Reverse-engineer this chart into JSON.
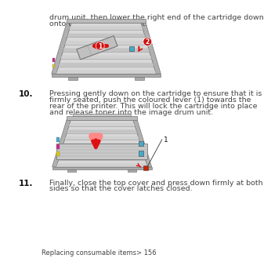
{
  "bg_color": "#ffffff",
  "top_text_line1": "drum unit, then lower the right end of the cartridge down",
  "top_text_line2": "onto the image drum unit.",
  "step10_label": "10.",
  "step10_text_line1": "Pressing gently down on the cartridge to ensure that it is",
  "step10_text_line2": "firmly seated, push the coloured lever (1) towards the",
  "step10_text_line3": "rear of the printer. This will lock the cartridge into place",
  "step10_text_line4": "and release toner into the image drum unit.",
  "step11_label": "11.",
  "step11_text_line1": "Finally, close the top cover and press down firmly at both",
  "step11_text_line2": "sides so that the cover latches closed.",
  "footer_text": "Replacing consumable items> 156",
  "text_color": "#444444",
  "label_color": "#111111",
  "font_size_body": 6.8,
  "font_size_footer": 6.0,
  "font_size_label": 7.5,
  "printer_body_color": "#e0e0e0",
  "printer_dark_color": "#888888",
  "printer_line_color": "#666666",
  "stripe_color": "#c8c8c8",
  "arrow_color": "#dd1111",
  "arrow_glow": "#ff8888",
  "cyan_color": "#44aacc",
  "yellow_color": "#ddcc00",
  "magenta_color": "#cc2288",
  "callout_bg": "#cc1111",
  "callout_text": "#ffffff",
  "cartridge_color": "#c0c0c0",
  "cartridge_dark": "#999999"
}
